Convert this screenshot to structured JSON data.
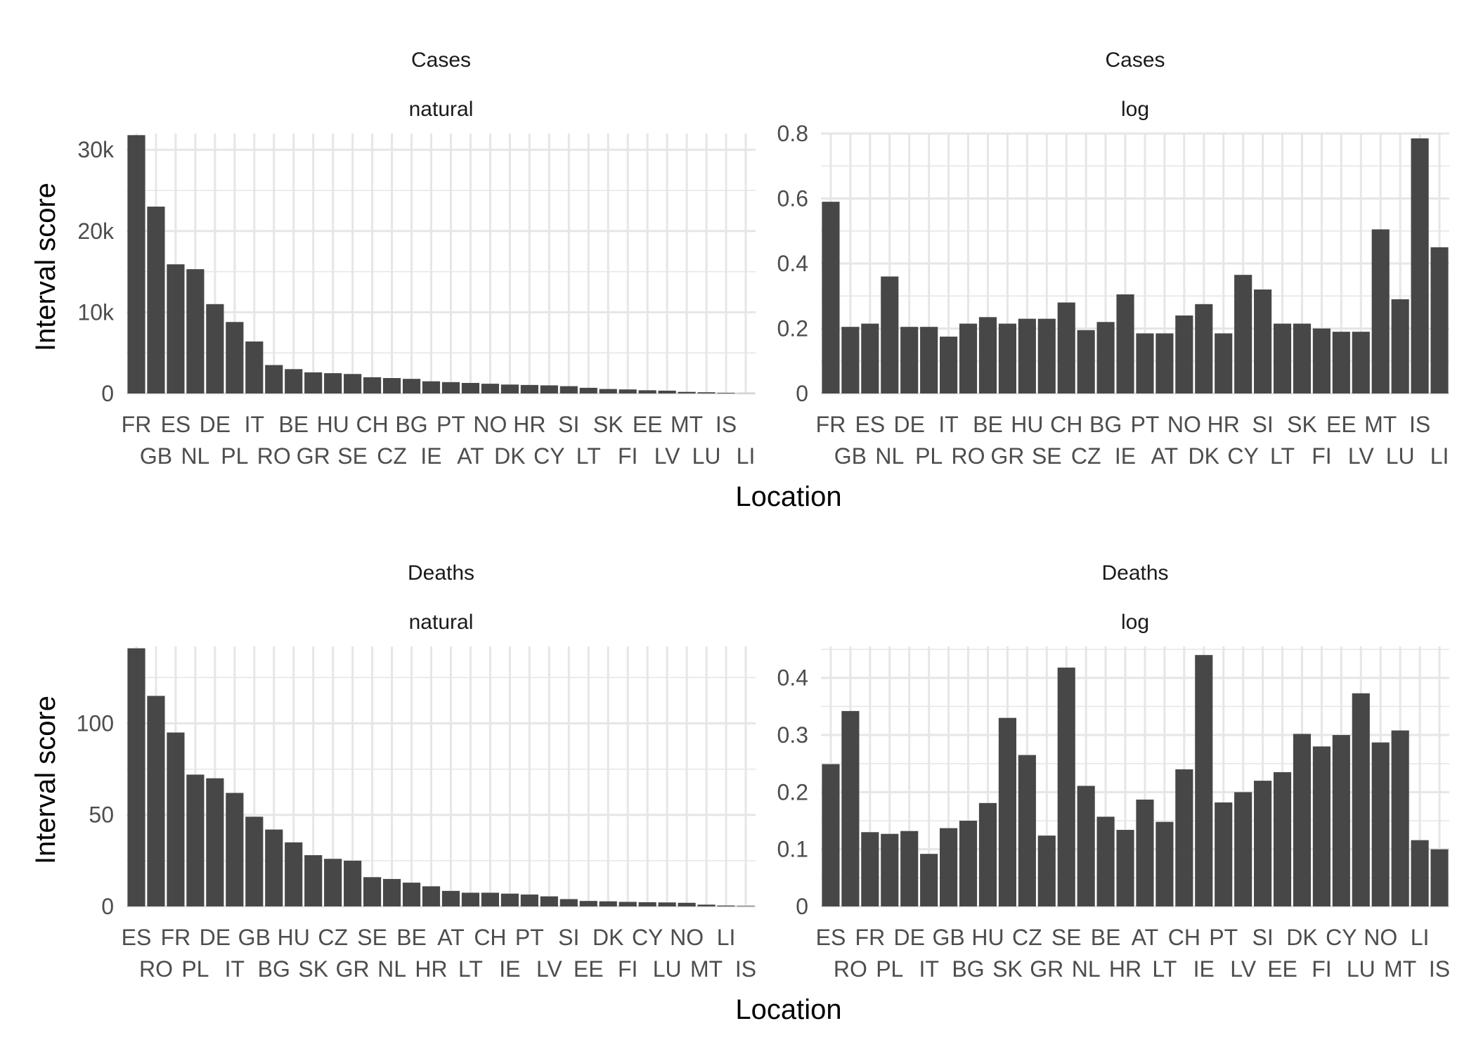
{
  "figure": {
    "y_axis_title": "Interval score",
    "x_axis_title": "Location",
    "colors": {
      "bar": "#474747",
      "grid": "#e6e6e6",
      "background": "#ffffff"
    }
  },
  "chart_data": [
    {
      "type": "bar",
      "title": "Cases",
      "subtitle": "natural",
      "xlabel": "Location",
      "ylabel": "Interval score",
      "grid": true,
      "ylim": [
        0,
        32000
      ],
      "yticks": [
        0,
        10000,
        20000,
        30000
      ],
      "ytick_labels": [
        "0",
        "10k",
        "20k",
        "30k"
      ],
      "categories": [
        "FR",
        "GB",
        "ES",
        "NL",
        "DE",
        "PL",
        "IT",
        "RO",
        "BE",
        "GR",
        "HU",
        "SE",
        "CH",
        "CZ",
        "BG",
        "IE",
        "PT",
        "AT",
        "NO",
        "DK",
        "HR",
        "CY",
        "SI",
        "LT",
        "SK",
        "FI",
        "EE",
        "LV",
        "MT",
        "LU",
        "IS",
        "LI"
      ],
      "values": [
        31800,
        23000,
        15900,
        15300,
        11000,
        8800,
        6400,
        3500,
        3000,
        2600,
        2500,
        2400,
        2000,
        1900,
        1800,
        1500,
        1400,
        1300,
        1200,
        1100,
        1050,
        1000,
        900,
        700,
        550,
        500,
        400,
        350,
        200,
        150,
        80,
        20
      ]
    },
    {
      "type": "bar",
      "title": "Cases",
      "subtitle": "log",
      "xlabel": "Location",
      "ylabel": "",
      "grid": true,
      "ylim": [
        0,
        0.8
      ],
      "yticks": [
        0,
        0.2,
        0.4,
        0.6,
        0.8
      ],
      "ytick_labels": [
        "0",
        "0.2",
        "0.4",
        "0.6",
        "0.8"
      ],
      "categories": [
        "FR",
        "GB",
        "ES",
        "NL",
        "DE",
        "PL",
        "IT",
        "RO",
        "BE",
        "GR",
        "HU",
        "SE",
        "CH",
        "CZ",
        "BG",
        "IE",
        "PT",
        "AT",
        "NO",
        "DK",
        "HR",
        "CY",
        "SI",
        "LT",
        "SK",
        "FI",
        "EE",
        "LV",
        "MT",
        "LU",
        "IS",
        "LI"
      ],
      "values": [
        0.59,
        0.205,
        0.215,
        0.36,
        0.205,
        0.205,
        0.175,
        0.215,
        0.235,
        0.215,
        0.23,
        0.23,
        0.28,
        0.195,
        0.22,
        0.305,
        0.185,
        0.185,
        0.24,
        0.275,
        0.185,
        0.365,
        0.32,
        0.215,
        0.215,
        0.2,
        0.19,
        0.19,
        0.505,
        0.29,
        0.785,
        0.45
      ]
    },
    {
      "type": "bar",
      "title": "Deaths",
      "subtitle": "natural",
      "xlabel": "Location",
      "ylabel": "Interval score",
      "grid": true,
      "ylim": [
        0,
        142
      ],
      "yticks": [
        0,
        50,
        100
      ],
      "ytick_labels": [
        "0",
        "50",
        "100"
      ],
      "categories": [
        "ES",
        "RO",
        "FR",
        "PL",
        "DE",
        "IT",
        "GB",
        "BG",
        "HU",
        "SK",
        "CZ",
        "GR",
        "SE",
        "NL",
        "BE",
        "HR",
        "AT",
        "LT",
        "CH",
        "IE",
        "PT",
        "LV",
        "SI",
        "EE",
        "DK",
        "FI",
        "CY",
        "LU",
        "NO",
        "MT",
        "LI",
        "IS"
      ],
      "values": [
        141,
        115,
        95,
        72,
        70,
        62,
        49,
        42,
        35,
        28,
        26,
        25,
        16,
        15,
        13,
        11,
        8.5,
        7.5,
        7.5,
        7,
        6.5,
        5.5,
        4,
        3,
        2.8,
        2.5,
        2.3,
        2.2,
        2,
        1,
        0.5,
        0.3
      ]
    },
    {
      "type": "bar",
      "title": "Deaths",
      "subtitle": "log",
      "xlabel": "Location",
      "ylabel": "",
      "grid": true,
      "ylim": [
        0,
        0.455
      ],
      "yticks": [
        0,
        0.1,
        0.2,
        0.3,
        0.4
      ],
      "ytick_labels": [
        "0",
        "0.1",
        "0.2",
        "0.3",
        "0.4"
      ],
      "categories": [
        "ES",
        "RO",
        "FR",
        "PL",
        "DE",
        "IT",
        "GB",
        "BG",
        "HU",
        "SK",
        "CZ",
        "GR",
        "SE",
        "NL",
        "BE",
        "HR",
        "AT",
        "LT",
        "CH",
        "IE",
        "PT",
        "LV",
        "SI",
        "EE",
        "DK",
        "FI",
        "CY",
        "LU",
        "NO",
        "MT",
        "LI",
        "IS"
      ],
      "values": [
        0.249,
        0.342,
        0.13,
        0.127,
        0.132,
        0.092,
        0.137,
        0.15,
        0.181,
        0.33,
        0.265,
        0.124,
        0.418,
        0.211,
        0.157,
        0.134,
        0.187,
        0.148,
        0.24,
        0.44,
        0.182,
        0.2,
        0.22,
        0.235,
        0.302,
        0.28,
        0.3,
        0.373,
        0.287,
        0.308,
        0.116,
        0.1
      ]
    }
  ]
}
